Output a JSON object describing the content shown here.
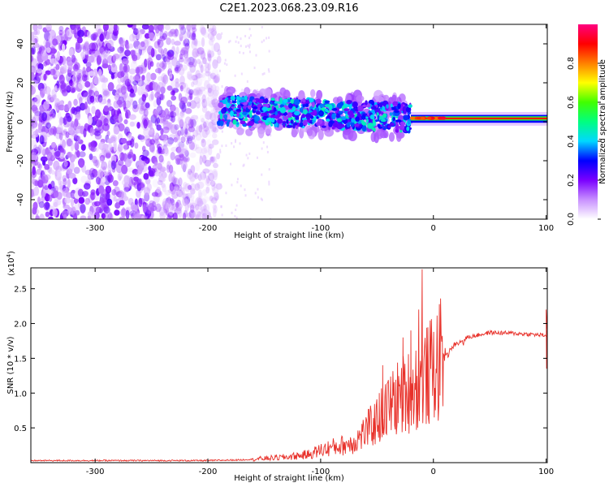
{
  "title": "C2E1.2023.068.23.09.R16",
  "chart_data": [
    {
      "type": "heatmap",
      "xlabel": "Height of straight line (km)",
      "ylabel": "Frequency (Hz)",
      "xlim": [
        -357,
        101
      ],
      "ylim": [
        -50,
        50
      ],
      "xticks": [
        -300,
        -200,
        -100,
        0,
        100
      ],
      "xtick_labels": [
        "-300",
        "-200",
        "-100",
        "0",
        "100"
      ],
      "yticks": [
        -40,
        -20,
        0,
        20,
        40
      ],
      "ytick_labels": [
        "-40",
        "-20",
        "0",
        "20",
        "40"
      ],
      "colorbar": {
        "label": "Normalized spectral amplitude",
        "range": [
          0,
          1
        ],
        "ticks": [
          0.0,
          0.2,
          0.4,
          0.6,
          0.8
        ],
        "tick_labels": [
          "0.0",
          "0.2",
          "0.4",
          "0.6",
          "0.8"
        ],
        "colors": [
          "#ffffff",
          "#c890ff",
          "#7a00ff",
          "#0000ff",
          "#00d8ff",
          "#00ff80",
          "#40ff00",
          "#ffff00",
          "#ff8000",
          "#ff0000",
          "#ff0080"
        ]
      },
      "regions": [
        {
          "x_range": [
            -357,
            -190
          ],
          "freq_range": [
            -50,
            50
          ],
          "amplitude": 0.1,
          "pattern": "noise"
        },
        {
          "x_range": [
            -190,
            -20
          ],
          "freq_range": [
            -5,
            15
          ],
          "amplitude": 0.35,
          "pattern": "band"
        },
        {
          "x_range": [
            -20,
            101
          ],
          "freq_range": [
            0,
            3
          ],
          "amplitude": 0.9,
          "pattern": "line"
        }
      ]
    },
    {
      "type": "line",
      "xlabel": "Height of straight line (km)",
      "ylabel": "SNR (10 * v/v)",
      "y_scale_label": "(x10",
      "y_scale_exp": "4",
      "y_scale_suffix": ")",
      "xlim": [
        -357,
        101
      ],
      "ylim": [
        0,
        2.8
      ],
      "xticks": [
        -300,
        -200,
        -100,
        0,
        100
      ],
      "xtick_labels": [
        "-300",
        "-200",
        "-100",
        "0",
        "100"
      ],
      "yticks": [
        0.5,
        1.0,
        1.5,
        2.0,
        2.5
      ],
      "ytick_labels": [
        "0.5",
        "1.0",
        "1.5",
        "2.0",
        "2.5"
      ],
      "line_color": "#e8312a",
      "series": [
        {
          "x": [
            -357,
            -300,
            -250,
            -200,
            -170,
            -150,
            -130,
            -110,
            -100,
            -90,
            -80,
            -70,
            -60,
            -50,
            -40,
            -30,
            -20,
            -15,
            -10,
            -5,
            0,
            5,
            10,
            20,
            30,
            50,
            70,
            90,
            100
          ],
          "y": [
            0.03,
            0.03,
            0.03,
            0.03,
            0.04,
            0.06,
            0.08,
            0.12,
            0.18,
            0.22,
            0.25,
            0.3,
            0.45,
            0.6,
            0.8,
            0.95,
            1.05,
            1.1,
            1.2,
            1.25,
            1.35,
            1.45,
            1.55,
            1.7,
            1.8,
            1.87,
            1.86,
            1.84,
            1.83
          ]
        }
      ],
      "spikes": [
        {
          "x": -10,
          "y": 2.78
        },
        {
          "x": -13,
          "y": 2.2
        },
        {
          "x": -20,
          "y": 1.9
        },
        {
          "x": -27,
          "y": 1.8
        },
        {
          "x": -45,
          "y": 1.4
        },
        {
          "x": -48,
          "y": 1.0
        }
      ]
    }
  ]
}
